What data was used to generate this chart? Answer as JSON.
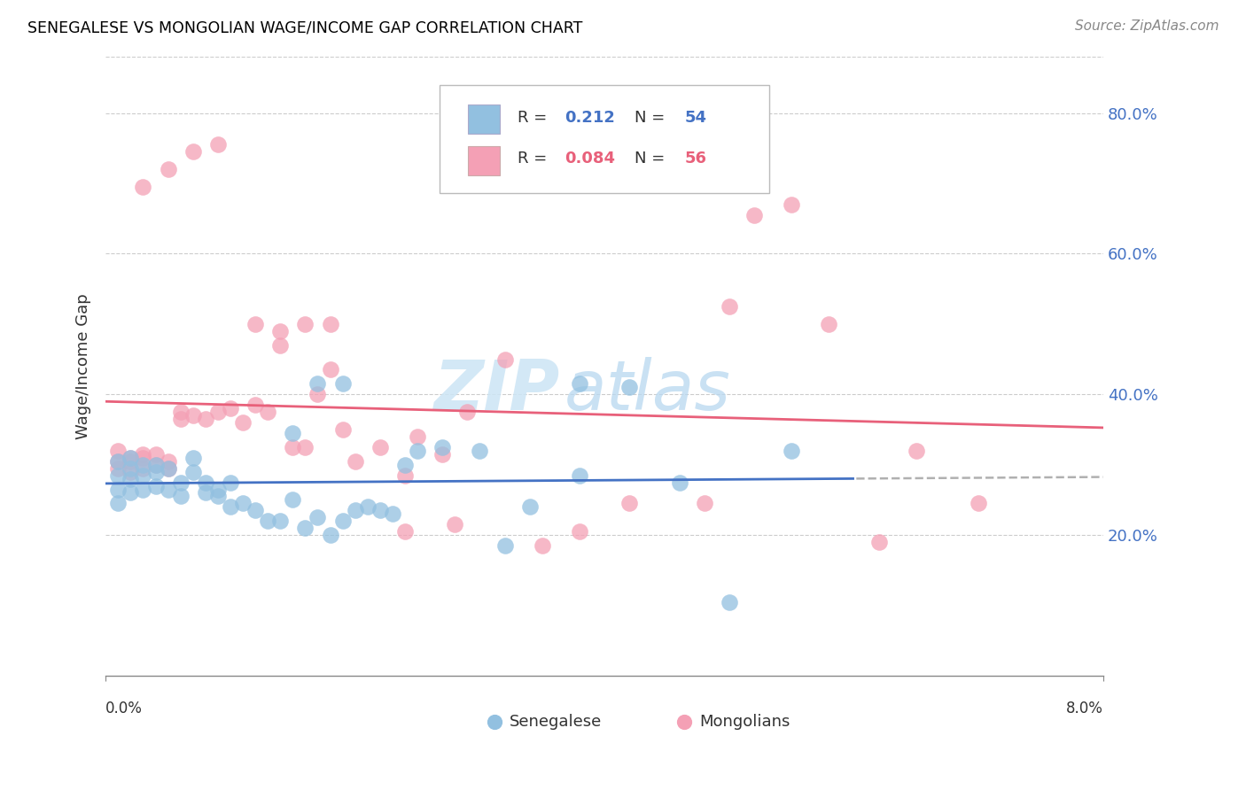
{
  "title": "SENEGALESE VS MONGOLIAN WAGE/INCOME GAP CORRELATION CHART",
  "source": "Source: ZipAtlas.com",
  "ylabel": "Wage/Income Gap",
  "x_range": [
    0.0,
    0.08
  ],
  "y_range": [
    0.0,
    0.88
  ],
  "senegalese_color": "#92c0e0",
  "mongolian_color": "#f4a0b5",
  "line_blue": "#4472c4",
  "line_pink": "#e8607a",
  "line_dash": "#b0b0b0",
  "senegalese_R": "0.212",
  "senegalese_N": "54",
  "mongolian_R": "0.084",
  "mongolian_N": "56",
  "watermark_zip": "ZIP",
  "watermark_atlas": "atlas",
  "senegalese_x": [
    0.001,
    0.001,
    0.001,
    0.001,
    0.002,
    0.002,
    0.002,
    0.002,
    0.003,
    0.003,
    0.003,
    0.004,
    0.004,
    0.004,
    0.005,
    0.005,
    0.006,
    0.006,
    0.007,
    0.007,
    0.008,
    0.008,
    0.009,
    0.009,
    0.01,
    0.01,
    0.011,
    0.012,
    0.013,
    0.014,
    0.015,
    0.016,
    0.017,
    0.018,
    0.019,
    0.02,
    0.021,
    0.022,
    0.023,
    0.024,
    0.025,
    0.027,
    0.03,
    0.032,
    0.034,
    0.038,
    0.042,
    0.046,
    0.05,
    0.055,
    0.015,
    0.017,
    0.019,
    0.038
  ],
  "senegalese_y": [
    0.285,
    0.305,
    0.265,
    0.245,
    0.295,
    0.31,
    0.28,
    0.26,
    0.3,
    0.285,
    0.265,
    0.29,
    0.3,
    0.27,
    0.295,
    0.265,
    0.275,
    0.255,
    0.29,
    0.31,
    0.26,
    0.275,
    0.255,
    0.265,
    0.275,
    0.24,
    0.245,
    0.235,
    0.22,
    0.22,
    0.25,
    0.21,
    0.225,
    0.2,
    0.22,
    0.235,
    0.24,
    0.235,
    0.23,
    0.3,
    0.32,
    0.325,
    0.32,
    0.185,
    0.24,
    0.285,
    0.41,
    0.275,
    0.105,
    0.32,
    0.345,
    0.415,
    0.415,
    0.415
  ],
  "mongolian_x": [
    0.001,
    0.001,
    0.001,
    0.002,
    0.002,
    0.002,
    0.003,
    0.003,
    0.003,
    0.004,
    0.004,
    0.005,
    0.005,
    0.006,
    0.006,
    0.007,
    0.008,
    0.009,
    0.01,
    0.011,
    0.012,
    0.013,
    0.014,
    0.015,
    0.016,
    0.017,
    0.018,
    0.019,
    0.02,
    0.022,
    0.024,
    0.025,
    0.027,
    0.029,
    0.032,
    0.035,
    0.038,
    0.042,
    0.048,
    0.05,
    0.052,
    0.055,
    0.058,
    0.062,
    0.065,
    0.07,
    0.012,
    0.014,
    0.016,
    0.018,
    0.003,
    0.005,
    0.007,
    0.009,
    0.024,
    0.028
  ],
  "mongolian_y": [
    0.305,
    0.295,
    0.32,
    0.31,
    0.29,
    0.305,
    0.315,
    0.295,
    0.31,
    0.3,
    0.315,
    0.295,
    0.305,
    0.375,
    0.365,
    0.37,
    0.365,
    0.375,
    0.38,
    0.36,
    0.385,
    0.375,
    0.47,
    0.325,
    0.325,
    0.4,
    0.435,
    0.35,
    0.305,
    0.325,
    0.285,
    0.34,
    0.315,
    0.375,
    0.45,
    0.185,
    0.205,
    0.245,
    0.245,
    0.525,
    0.655,
    0.67,
    0.5,
    0.19,
    0.32,
    0.245,
    0.5,
    0.49,
    0.5,
    0.5,
    0.695,
    0.72,
    0.745,
    0.755,
    0.205,
    0.215
  ]
}
